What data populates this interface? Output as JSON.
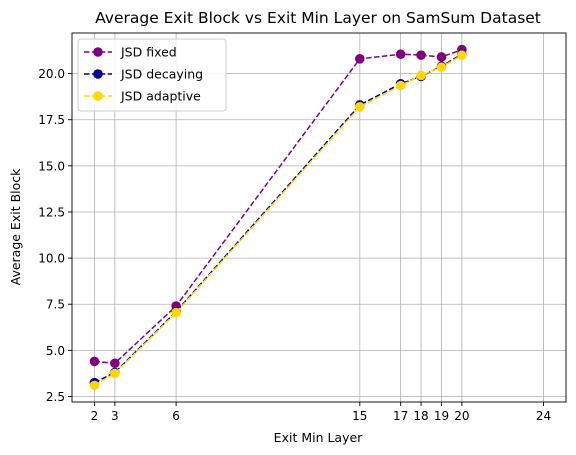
{
  "chart_data": {
    "type": "line",
    "title": "Average Exit Block vs Exit Min Layer on SamSum Dataset",
    "xlabel": "Exit Min Layer",
    "ylabel": "Average Exit Block",
    "xlim": [
      0.9,
      25.1
    ],
    "ylim": [
      2.2,
      22.2
    ],
    "xticks": [
      2,
      3,
      6,
      15,
      17,
      18,
      19,
      20,
      24
    ],
    "yticks": [
      2.5,
      5.0,
      7.5,
      10.0,
      12.5,
      15.0,
      17.5,
      20.0
    ],
    "ytick_labels": [
      "2.5",
      "5.0",
      "7.5",
      "10.0",
      "12.5",
      "15.0",
      "17.5",
      "20.0"
    ],
    "grid": true,
    "legend_position": "top-left",
    "series": [
      {
        "name": "JSD fixed",
        "color": "#800080",
        "x": [
          2,
          3,
          6,
          15,
          17,
          18,
          19,
          20
        ],
        "values": [
          4.4,
          4.3,
          7.4,
          20.8,
          21.05,
          21.0,
          20.9,
          21.3
        ]
      },
      {
        "name": "JSD decaying",
        "color": "#00008b",
        "x": [
          2,
          3,
          6,
          15,
          17,
          18,
          19,
          20
        ],
        "values": [
          3.25,
          3.8,
          7.1,
          18.3,
          19.45,
          19.85,
          20.4,
          21.05
        ]
      },
      {
        "name": "JSD adaptive",
        "color": "#ffd700",
        "x": [
          2,
          3,
          6,
          15,
          17,
          18,
          19,
          20
        ],
        "values": [
          3.1,
          3.75,
          7.05,
          18.2,
          19.35,
          19.9,
          20.35,
          21.0
        ]
      }
    ]
  }
}
